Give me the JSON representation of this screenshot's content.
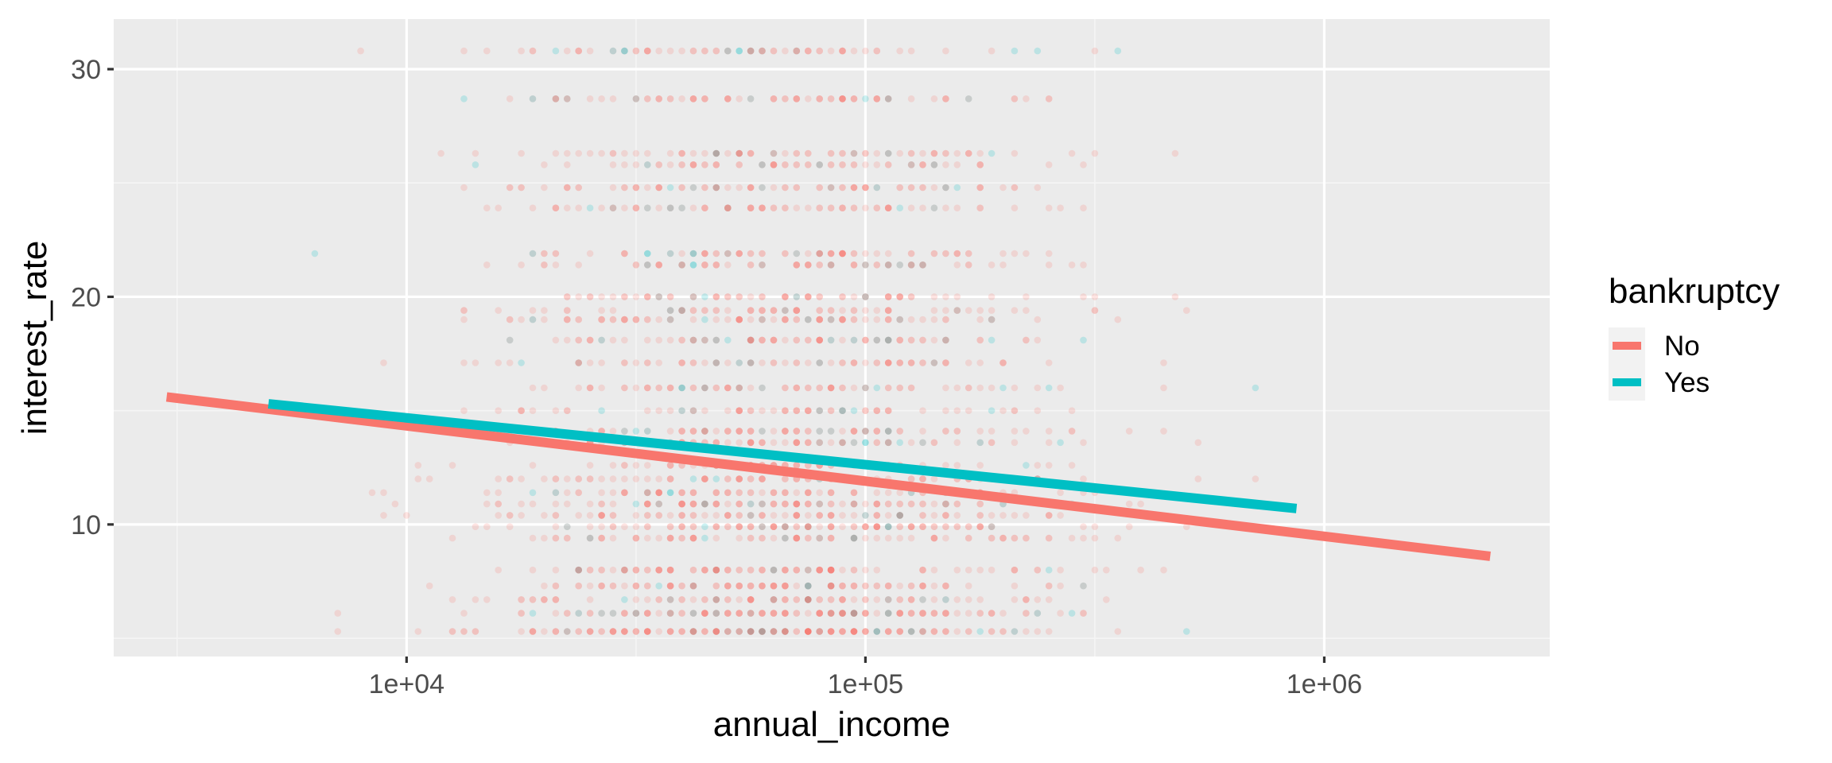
{
  "chart_data": {
    "type": "scatter",
    "title": "",
    "xlabel": "annual_income",
    "ylabel": "interest_rate",
    "x_scale": "log10",
    "xlim": [
      2300,
      3100000
    ],
    "ylim": [
      4.2,
      32.2
    ],
    "x_ticks": [
      {
        "value": 10000,
        "label": "1e+04"
      },
      {
        "value": 100000,
        "label": "1e+05"
      },
      {
        "value": 1000000,
        "label": "1e+06"
      }
    ],
    "y_ticks": [
      {
        "value": 10,
        "label": "10"
      },
      {
        "value": 20,
        "label": "20"
      },
      {
        "value": 30,
        "label": "30"
      }
    ],
    "grid": true,
    "point_opacity": 0.2,
    "legend": {
      "title": "bankruptcy",
      "position": "right",
      "entries": [
        {
          "label": "No",
          "color": "#F8766D"
        },
        {
          "label": "Yes",
          "color": "#00BFC4"
        }
      ]
    },
    "series": [
      {
        "name": "No",
        "color": "#F8766D",
        "points_estimated": true,
        "trend_line": {
          "x": [
            3000,
            2300000
          ],
          "y": [
            15.6,
            8.6
          ]
        }
      },
      {
        "name": "Yes",
        "color": "#00BFC4",
        "points_estimated": true,
        "trend_line": {
          "x": [
            5000,
            870000
          ],
          "y": [
            15.3,
            10.7
          ]
        }
      }
    ],
    "interest_rate_levels": [
      5.3,
      6.1,
      6.7,
      7.3,
      8.0,
      9.4,
      9.9,
      10.4,
      10.9,
      11.4,
      12.0,
      12.6,
      13.6,
      14.1,
      15.0,
      16.0,
      17.1,
      18.1,
      19.0,
      19.4,
      20.0,
      21.4,
      21.9,
      23.9,
      24.8,
      25.8,
      26.3,
      28.7,
      30.8
    ],
    "income_distribution": {
      "log10_median": 4.82,
      "log10_sd": 0.3,
      "min": 3000,
      "max": 2300000
    }
  }
}
